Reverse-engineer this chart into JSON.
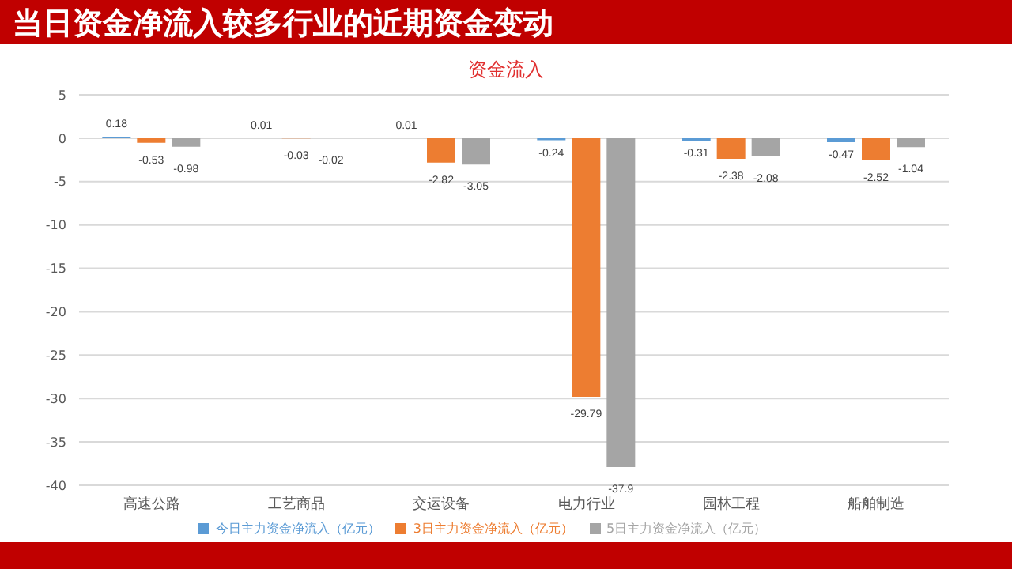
{
  "chart_data": {
    "type": "bar",
    "title": "当日资金净流入较多行业的近期资金变动",
    "subtitle": "资金流入",
    "categories": [
      "高速公路",
      "工艺商品",
      "交运设备",
      "电力行业",
      "园林工程",
      "船舶制造"
    ],
    "series": [
      {
        "name": "今日主力资金净流入（亿元）",
        "color": "#5b9bd5",
        "values": [
          0.18,
          0.01,
          0.01,
          -0.24,
          -0.31,
          -0.47
        ]
      },
      {
        "name": "3日主力资金净流入（亿元）",
        "color": "#ed7d31",
        "values": [
          -0.53,
          -0.03,
          -2.82,
          -29.79,
          -2.38,
          -2.52
        ]
      },
      {
        "name": "5日主力资金净流入（亿元）",
        "color": "#a5a5a5",
        "values": [
          -0.98,
          -0.02,
          -3.05,
          -37.9,
          -2.08,
          -1.04
        ]
      }
    ],
    "ylim": [
      -40,
      5
    ],
    "yticks": [
      5,
      0,
      -5,
      -10,
      -15,
      -20,
      -25,
      -30,
      -35,
      -40
    ],
    "grid": "y",
    "legend": "bottom",
    "data_labels": true
  }
}
